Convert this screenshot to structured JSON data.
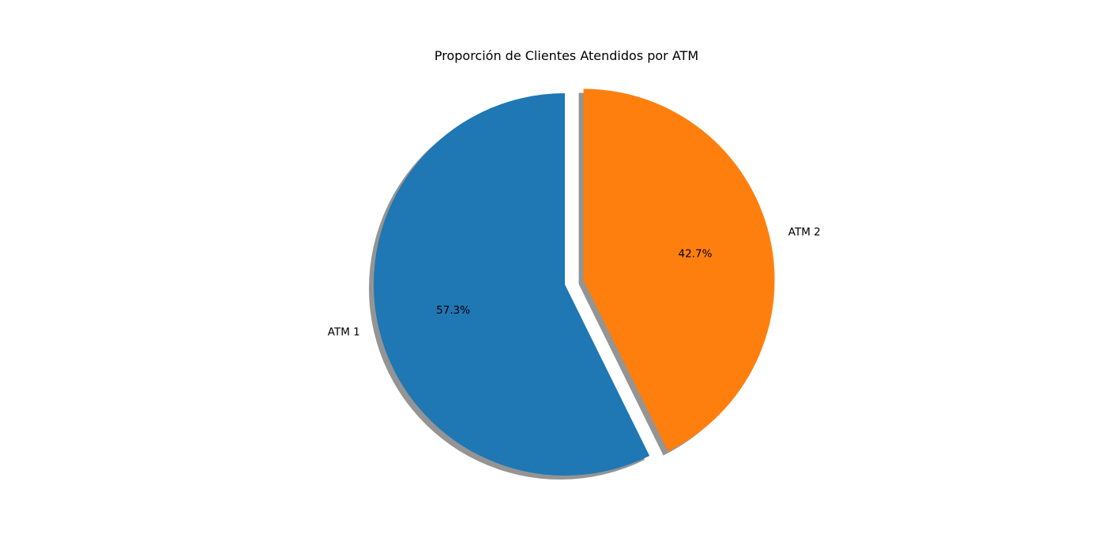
{
  "chart_data": {
    "type": "pie",
    "title": "Proporción de Clientes Atendidos por ATM",
    "labels": [
      "ATM 1",
      "ATM 2"
    ],
    "values": [
      57.3,
      42.7
    ],
    "percent_labels": [
      "57.3%",
      "42.7%"
    ],
    "colors": [
      "#1f77b4",
      "#ff7f0e"
    ],
    "explode": [
      0,
      0.1
    ],
    "start_angle": 90,
    "direction": "counterclockwise",
    "shadow": true,
    "legend": "none"
  }
}
